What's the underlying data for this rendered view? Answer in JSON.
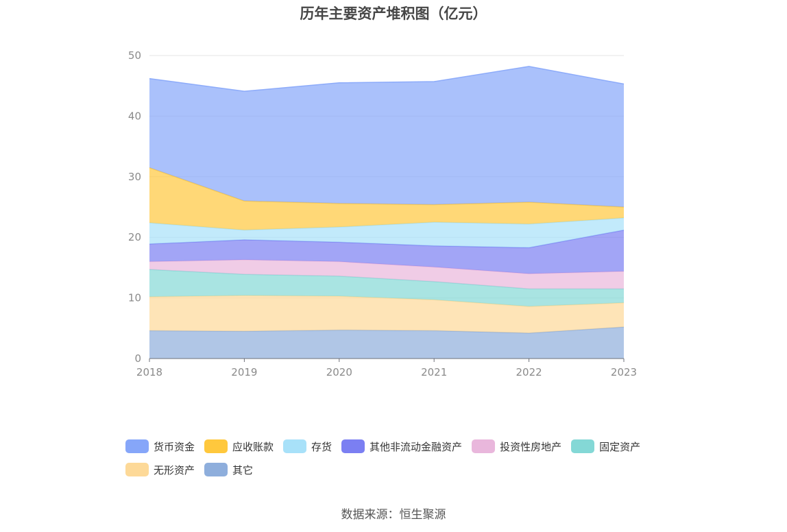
{
  "chart_data": {
    "type": "area",
    "stacked": true,
    "title": "历年主要资产堆积图（亿元）",
    "x": [
      "2018",
      "2019",
      "2020",
      "2021",
      "2022",
      "2023"
    ],
    "ylim": [
      0,
      50
    ],
    "yticks": [
      0,
      10,
      20,
      30,
      40,
      50
    ],
    "grid": true,
    "legend_position": "bottom",
    "series": [
      {
        "name": "其它",
        "color": "#8eaedc",
        "values": [
          4.6,
          4.5,
          4.7,
          4.6,
          4.2,
          5.2
        ]
      },
      {
        "name": "无形资产",
        "color": "#fdd998",
        "values": [
          5.6,
          5.9,
          5.6,
          5.1,
          4.4,
          4.0
        ]
      },
      {
        "name": "固定资产",
        "color": "#84d8d6",
        "values": [
          4.5,
          3.5,
          3.3,
          3.0,
          2.9,
          2.3
        ]
      },
      {
        "name": "投资性房地产",
        "color": "#e9b7dc",
        "values": [
          1.3,
          2.4,
          2.4,
          2.4,
          2.5,
          2.9
        ]
      },
      {
        "name": "其他非流动金融资产",
        "color": "#7b7ff2",
        "values": [
          2.9,
          3.3,
          3.2,
          3.5,
          4.3,
          6.8
        ]
      },
      {
        "name": "存货",
        "color": "#a8e1f9",
        "values": [
          3.5,
          1.6,
          2.5,
          3.9,
          3.9,
          2.0
        ]
      },
      {
        "name": "应收账款",
        "color": "#ffc83d",
        "values": [
          9.1,
          4.8,
          3.9,
          2.9,
          3.6,
          1.8
        ]
      },
      {
        "name": "货币资金",
        "color": "#86a6f9",
        "values": [
          14.7,
          18.1,
          19.9,
          20.3,
          22.4,
          20.3
        ]
      }
    ],
    "legend_order": [
      "货币资金",
      "应收账款",
      "存货",
      "其他非流动金融资产",
      "投资性房地产",
      "固定资产",
      "无形资产",
      "其它"
    ]
  },
  "source_text": "数据来源：恒生聚源"
}
